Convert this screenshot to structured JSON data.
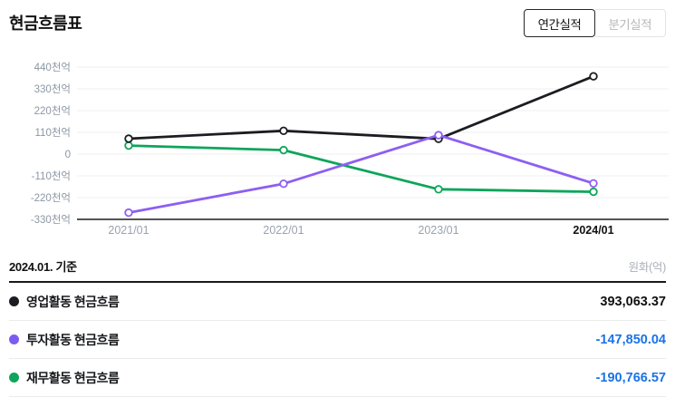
{
  "header": {
    "title": "현금흐름표",
    "tabs": [
      {
        "label": "연간실적",
        "selected": true
      },
      {
        "label": "분기실적",
        "selected": false
      }
    ]
  },
  "chart_data": {
    "type": "line",
    "x": [
      "2021/01",
      "2022/01",
      "2023/01",
      "2024/01"
    ],
    "highlighted_x": "2024/01",
    "unit": "억",
    "yticks": [
      440,
      330,
      220,
      110,
      0,
      -110,
      -220,
      -330
    ],
    "ytick_labels": [
      "440천억",
      "330천억",
      "220천억",
      "110천억",
      "0",
      "-110천억",
      "-220천억",
      "-330천억"
    ],
    "ylim_cheoneok": [
      -330,
      440
    ],
    "grid": true,
    "series": [
      {
        "name": "영업활동 현금흐름",
        "color": "#1b1d21",
        "values": [
          78000,
          118000,
          77000,
          393063.37
        ]
      },
      {
        "name": "투자활동 현금흐름",
        "color": "#8d5ff2",
        "values": [
          -296000,
          -150000,
          96000,
          -147850.04
        ]
      },
      {
        "name": "재무활동 현금흐름",
        "color": "#0ea55b",
        "values": [
          43000,
          20000,
          -178000,
          -190766.57
        ]
      }
    ]
  },
  "table": {
    "basis_label": "2024.01. 기준",
    "unit_label": "원화(억)",
    "negative_value_color": "#1a73e8",
    "positive_value_color": "#111111",
    "rows": [
      {
        "label": "영업활동 현금흐름",
        "value": "393,063.37",
        "dot_color": "#1b1d21",
        "negative": false
      },
      {
        "label": "투자활동 현금흐름",
        "value": "-147,850.04",
        "dot_color": "#7c5cf0",
        "negative": true
      },
      {
        "label": "재무활동 현금흐름",
        "value": "-190,766.57",
        "dot_color": "#0ea55b",
        "negative": true
      }
    ]
  }
}
